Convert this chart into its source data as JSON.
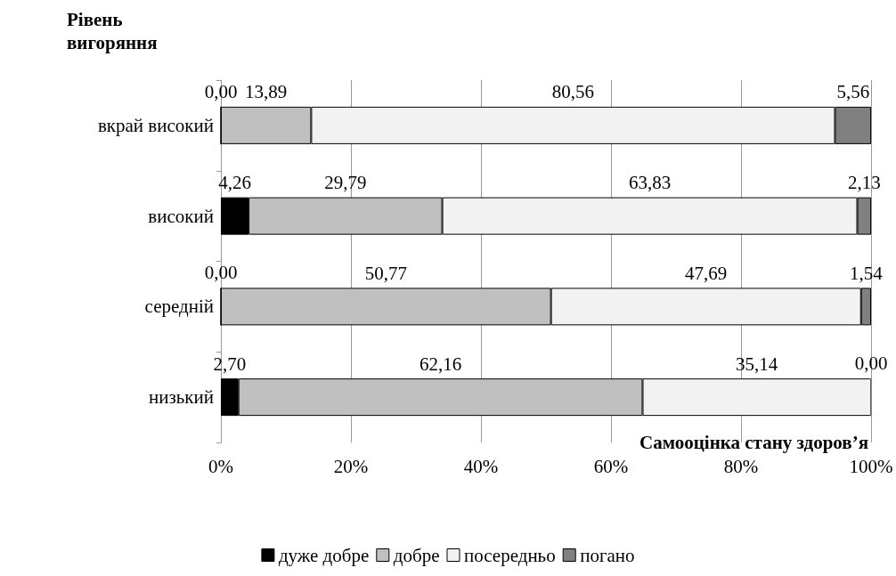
{
  "chart_data": {
    "type": "bar",
    "orientation": "horizontal",
    "stacked": true,
    "ylabel": "Рівень вигоряння",
    "xlabel": "Самооцінка стану здоров’я",
    "categories": [
      "вкрай високий",
      "високий",
      "середній",
      "низький"
    ],
    "series": [
      {
        "name": "дуже добре",
        "color": "#000000",
        "values": [
          0.0,
          4.26,
          0.0,
          2.7
        ],
        "value_labels": [
          "0,00",
          "4,26",
          "0,00",
          "2,70"
        ]
      },
      {
        "name": "добре",
        "color": "#c0c0c0",
        "values": [
          13.89,
          29.79,
          50.77,
          62.16
        ],
        "value_labels": [
          "13,89",
          "29,79",
          "50,77",
          "62,16"
        ]
      },
      {
        "name": "посередньо",
        "color": "#f2f2f2",
        "values": [
          80.56,
          63.83,
          47.69,
          35.14
        ],
        "value_labels": [
          "80,56",
          "63,83",
          "47,69",
          "35,14"
        ]
      },
      {
        "name": "погано",
        "color": "#808080",
        "values": [
          5.56,
          2.13,
          1.54,
          0.0
        ],
        "value_labels": [
          "5,56",
          "2,13",
          "1,54",
          "0,00"
        ]
      }
    ],
    "xlim": [
      0,
      100
    ],
    "xticks": [
      {
        "value": 0,
        "label": "0%"
      },
      {
        "value": 20,
        "label": "20%"
      },
      {
        "value": 40,
        "label": "40%"
      },
      {
        "value": 60,
        "label": "60%"
      },
      {
        "value": 80,
        "label": "80%"
      },
      {
        "value": 100,
        "label": "100%"
      }
    ],
    "grid": "x",
    "legend": "bottom"
  }
}
